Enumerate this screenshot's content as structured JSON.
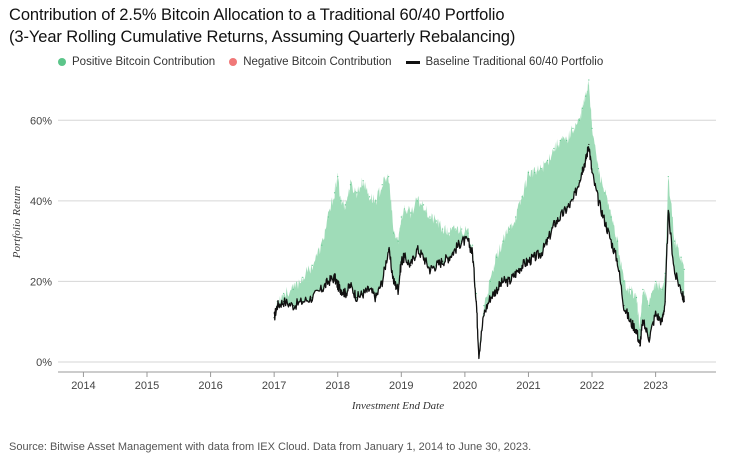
{
  "header": {
    "title_line1": "Contribution of 2.5% Bitcoin Allocation to a Traditional 60/40 Portfolio",
    "title_line2": "(3-Year Rolling Cumulative Returns, Assuming Quarterly Rebalancing)"
  },
  "legend": {
    "positive": "Positive Bitcoin Contribution",
    "negative": "Negative Bitcoin Contribution",
    "baseline": "Baseline Traditional 60/40 Portfolio"
  },
  "colors": {
    "positive": "#5cc58a",
    "positive_fill": "#9fdcb8",
    "negative": "#f07878",
    "baseline": "#111111",
    "grid": "#d6d6d6"
  },
  "source": "Source: Bitwise Asset Management with data from IEX Cloud. Data from January 1, 2014 to June 30, 2023.",
  "chart_data": {
    "type": "area",
    "xlabel": "Investment End Date",
    "ylabel": "Portfolio Return",
    "ylim": [
      0,
      70
    ],
    "xlim": [
      2013.6,
      2023.95
    ],
    "yticks": [
      0,
      20,
      40,
      60
    ],
    "ytick_labels": [
      "0%",
      "20%",
      "40%",
      "60%"
    ],
    "xticks": [
      2014,
      2015,
      2016,
      2017,
      2018,
      2019,
      2020,
      2021,
      2022,
      2023
    ],
    "xtick_labels": [
      "2014",
      "2015",
      "2016",
      "2017",
      "2018",
      "2019",
      "2020",
      "2021",
      "2022",
      "2023"
    ],
    "grid": "horizontal",
    "legend_position": "top-left",
    "series": [
      {
        "name": "Baseline Traditional 60/40 Portfolio",
        "x": [
          2017.0,
          2017.05,
          2017.15,
          2017.3,
          2017.45,
          2017.6,
          2017.75,
          2017.85,
          2017.95,
          2018.0,
          2018.05,
          2018.12,
          2018.2,
          2018.3,
          2018.4,
          2018.5,
          2018.6,
          2018.7,
          2018.8,
          2018.88,
          2018.95,
          2019.0,
          2019.05,
          2019.15,
          2019.25,
          2019.35,
          2019.45,
          2019.55,
          2019.65,
          2019.75,
          2019.85,
          2019.95,
          2020.05,
          2020.12,
          2020.18,
          2020.22,
          2020.3,
          2020.4,
          2020.5,
          2020.6,
          2020.7,
          2020.8,
          2020.9,
          2021.0,
          2021.1,
          2021.2,
          2021.3,
          2021.4,
          2021.5,
          2021.6,
          2021.7,
          2021.8,
          2021.85,
          2021.9,
          2021.95,
          2022.0,
          2022.1,
          2022.2,
          2022.3,
          2022.4,
          2022.5,
          2022.6,
          2022.7,
          2022.75,
          2022.8,
          2022.9,
          2023.0,
          2023.1,
          2023.15,
          2023.2,
          2023.3,
          2023.4,
          2023.45
        ],
        "values": [
          11,
          14,
          15,
          14,
          15,
          16,
          18,
          20,
          21,
          19,
          18,
          17,
          19,
          16,
          17,
          18,
          16,
          20,
          28,
          20,
          18,
          25,
          26,
          24,
          28,
          26,
          23,
          24,
          25,
          26,
          28,
          30,
          30,
          27,
          15,
          2,
          12,
          16,
          18,
          20,
          20,
          22,
          24,
          25,
          26,
          27,
          30,
          34,
          36,
          38,
          40,
          45,
          48,
          50,
          54,
          47,
          40,
          35,
          30,
          25,
          14,
          10,
          8,
          4,
          10,
          6,
          12,
          10,
          15,
          37,
          22,
          18,
          15
        ]
      },
      {
        "name": "Positive Bitcoin Contribution",
        "x": [
          2017.0,
          2017.05,
          2017.15,
          2017.3,
          2017.45,
          2017.6,
          2017.75,
          2017.85,
          2017.95,
          2018.0,
          2018.05,
          2018.12,
          2018.2,
          2018.3,
          2018.4,
          2018.5,
          2018.6,
          2018.7,
          2018.8,
          2018.88,
          2018.95,
          2019.0,
          2019.05,
          2019.15,
          2019.25,
          2019.35,
          2019.45,
          2019.55,
          2019.65,
          2019.75,
          2019.85,
          2019.95,
          2020.05,
          2020.12,
          2020.18,
          2020.22,
          2020.3,
          2020.4,
          2020.5,
          2020.6,
          2020.7,
          2020.8,
          2020.9,
          2021.0,
          2021.1,
          2021.2,
          2021.3,
          2021.4,
          2021.5,
          2021.6,
          2021.7,
          2021.8,
          2021.85,
          2021.9,
          2021.95,
          2022.0,
          2022.1,
          2022.2,
          2022.3,
          2022.4,
          2022.5,
          2022.6,
          2022.7,
          2022.75,
          2022.8,
          2022.9,
          2023.0,
          2023.1,
          2023.15,
          2023.2,
          2023.3,
          2023.4,
          2023.45
        ],
        "values": [
          11,
          15,
          17,
          18,
          21,
          24,
          29,
          36,
          42,
          46,
          40,
          39,
          44,
          42,
          45,
          41,
          40,
          44,
          46,
          32,
          30,
          36,
          38,
          37,
          40,
          39,
          36,
          35,
          33,
          32,
          33,
          33,
          32,
          29,
          17,
          2,
          14,
          20,
          26,
          30,
          33,
          36,
          41,
          47,
          47,
          48,
          50,
          53,
          55,
          55,
          58,
          60,
          63,
          66,
          70,
          58,
          48,
          42,
          36,
          30,
          20,
          18,
          16,
          8,
          18,
          14,
          20,
          18,
          22,
          46,
          30,
          26,
          23
        ]
      }
    ]
  }
}
